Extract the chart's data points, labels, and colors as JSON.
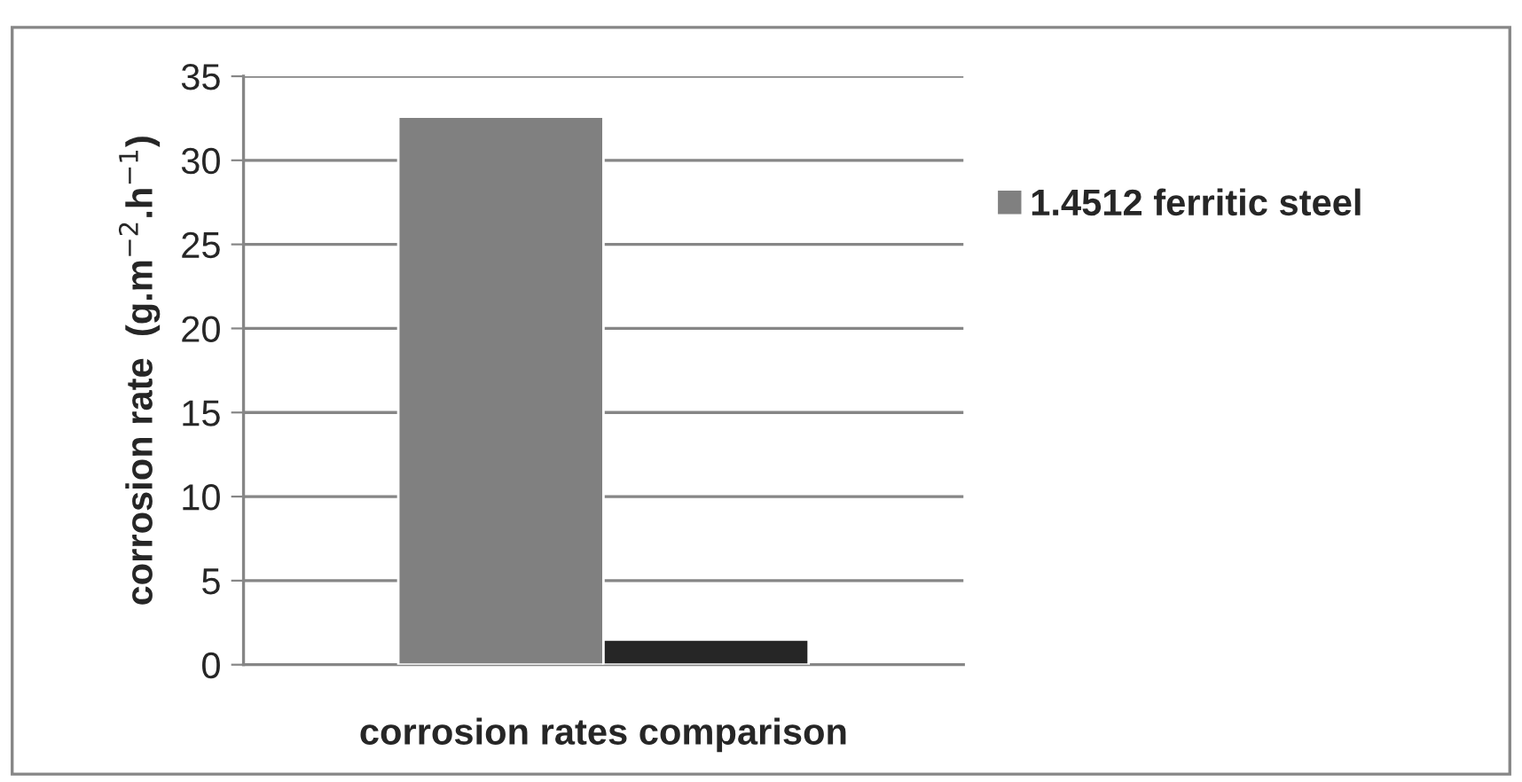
{
  "chart_data": {
    "type": "bar",
    "xlabel": "corrosion rates comparison",
    "ylabel": "corrosion rate  (g.m$^{−2}$.h$^{−1}$)",
    "categories": [
      null
    ],
    "series": [
      {
        "name": "1.4512 ferritic steel",
        "color": "#808080",
        "values": [
          32.6
        ]
      },
      {
        "color": "#262626",
        "values": [
          1.5
        ]
      }
    ],
    "ylim": [
      0,
      35
    ],
    "yticks": [
      0,
      5,
      10,
      15,
      20,
      25,
      30,
      35
    ],
    "grid": "y",
    "legend": "right"
  }
}
